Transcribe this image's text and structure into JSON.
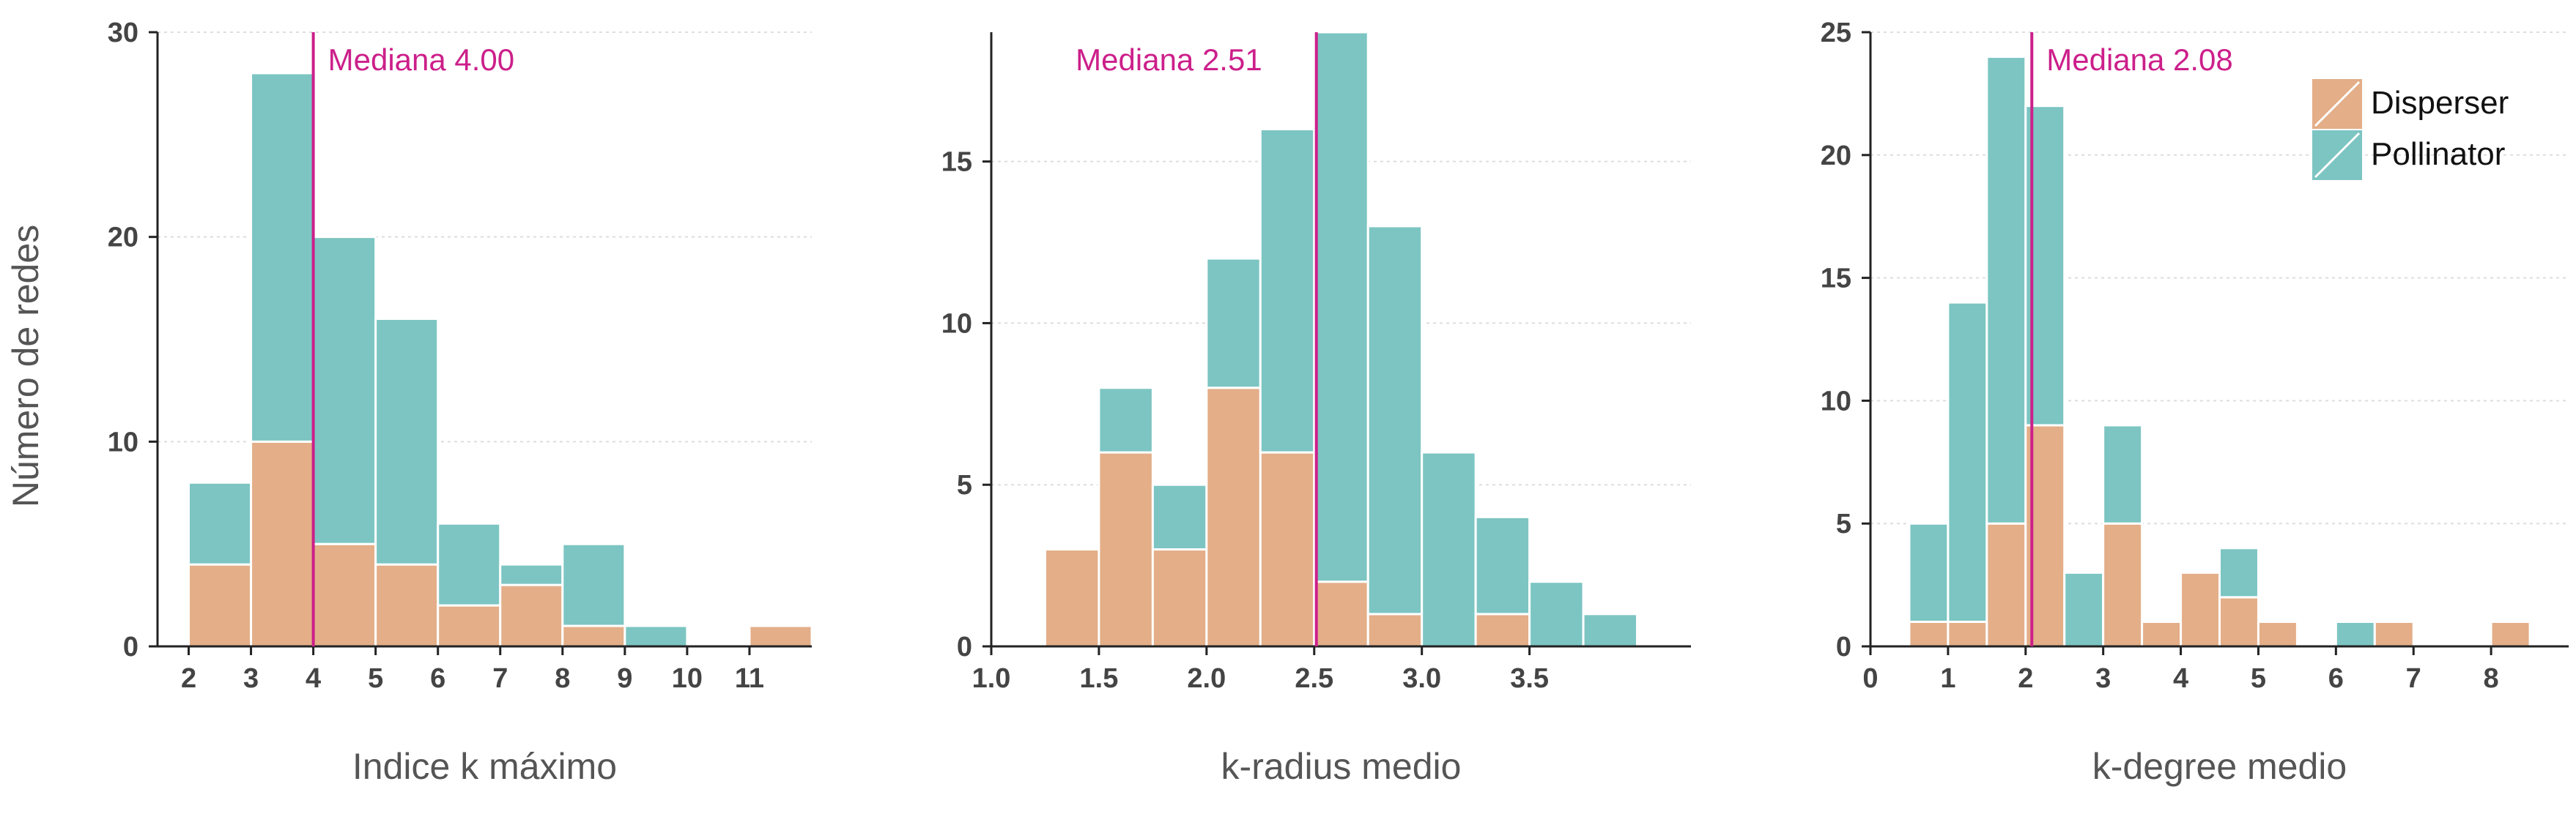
{
  "ylabel": "Número de redes",
  "colors": {
    "disperser": "#e3ae88",
    "pollinator": "#7cc5c2",
    "median": "#cc1f8a",
    "axis": "#222222",
    "grid": "#dddddd"
  },
  "legend": {
    "position": "top-right of third panel",
    "items": [
      {
        "label": "Disperser",
        "color": "#e3ae88"
      },
      {
        "label": "Pollinator",
        "color": "#7cc5c2"
      }
    ]
  },
  "chart_data": [
    {
      "type": "bar",
      "stacked": true,
      "xlabel": "Indice k máximo",
      "ylabel": "Número de redes",
      "median_label": "Mediana 4.00",
      "median": 4.0,
      "xlim": [
        1.5,
        12
      ],
      "ylim": [
        0,
        30
      ],
      "xticks": [
        2,
        3,
        4,
        5,
        6,
        7,
        8,
        9,
        10,
        11
      ],
      "yticks": [
        0,
        10,
        20,
        30
      ],
      "grid": true,
      "bins": [
        {
          "x0": 2,
          "x1": 3,
          "disperser": 4,
          "pollinator": 4
        },
        {
          "x0": 3,
          "x1": 4,
          "disperser": 10,
          "pollinator": 18
        },
        {
          "x0": 4,
          "x1": 5,
          "disperser": 5,
          "pollinator": 15
        },
        {
          "x0": 5,
          "x1": 6,
          "disperser": 4,
          "pollinator": 12
        },
        {
          "x0": 6,
          "x1": 7,
          "disperser": 2,
          "pollinator": 4
        },
        {
          "x0": 7,
          "x1": 8,
          "disperser": 3,
          "pollinator": 1
        },
        {
          "x0": 8,
          "x1": 9,
          "disperser": 1,
          "pollinator": 4
        },
        {
          "x0": 9,
          "x1": 10,
          "disperser": 0,
          "pollinator": 1
        },
        {
          "x0": 11,
          "x1": 12,
          "disperser": 1,
          "pollinator": 0
        }
      ]
    },
    {
      "type": "bar",
      "stacked": true,
      "xlabel": "k-radius medio",
      "ylabel": "",
      "median_label": "Mediana 2.51",
      "median": 2.51,
      "xlim": [
        1.0,
        4.25
      ],
      "ylim": [
        0,
        19
      ],
      "xticks": [
        1.0,
        1.5,
        2.0,
        2.5,
        3.0,
        3.5
      ],
      "xtick_labels": [
        "1.0",
        "1.5",
        "2.0",
        "2.5",
        "3.0",
        "3.5"
      ],
      "yticks": [
        0,
        5,
        10,
        15
      ],
      "grid": true,
      "bins": [
        {
          "x0": 1.25,
          "x1": 1.5,
          "disperser": 3,
          "pollinator": 0
        },
        {
          "x0": 1.5,
          "x1": 1.75,
          "disperser": 6,
          "pollinator": 2
        },
        {
          "x0": 1.75,
          "x1": 2.0,
          "disperser": 3,
          "pollinator": 2
        },
        {
          "x0": 2.0,
          "x1": 2.25,
          "disperser": 8,
          "pollinator": 4
        },
        {
          "x0": 2.25,
          "x1": 2.5,
          "disperser": 6,
          "pollinator": 10
        },
        {
          "x0": 2.5,
          "x1": 2.75,
          "disperser": 2,
          "pollinator": 17
        },
        {
          "x0": 2.75,
          "x1": 3.0,
          "disperser": 1,
          "pollinator": 12
        },
        {
          "x0": 3.0,
          "x1": 3.25,
          "disperser": 0,
          "pollinator": 6
        },
        {
          "x0": 3.25,
          "x1": 3.5,
          "disperser": 1,
          "pollinator": 3
        },
        {
          "x0": 3.5,
          "x1": 3.75,
          "disperser": 0,
          "pollinator": 2
        },
        {
          "x0": 3.75,
          "x1": 4.0,
          "disperser": 0,
          "pollinator": 1
        }
      ]
    },
    {
      "type": "bar",
      "stacked": true,
      "xlabel": "k-degree medio",
      "ylabel": "",
      "median_label": "Mediana 2.08",
      "median": 2.08,
      "xlim": [
        0,
        9
      ],
      "ylim": [
        0,
        25
      ],
      "xticks": [
        0,
        1,
        2,
        3,
        4,
        5,
        6,
        7,
        8
      ],
      "yticks": [
        0,
        5,
        10,
        15,
        20,
        25
      ],
      "grid": true,
      "bins": [
        {
          "x0": 0.5,
          "x1": 1.0,
          "disperser": 1,
          "pollinator": 4
        },
        {
          "x0": 1.0,
          "x1": 1.5,
          "disperser": 1,
          "pollinator": 13
        },
        {
          "x0": 1.5,
          "x1": 2.0,
          "disperser": 5,
          "pollinator": 19
        },
        {
          "x0": 2.0,
          "x1": 2.5,
          "disperser": 9,
          "pollinator": 13
        },
        {
          "x0": 2.5,
          "x1": 3.0,
          "disperser": 0,
          "pollinator": 3
        },
        {
          "x0": 3.0,
          "x1": 3.5,
          "disperser": 5,
          "pollinator": 4
        },
        {
          "x0": 3.5,
          "x1": 4.0,
          "disperser": 1,
          "pollinator": 0
        },
        {
          "x0": 4.0,
          "x1": 4.5,
          "disperser": 3,
          "pollinator": 0
        },
        {
          "x0": 4.5,
          "x1": 5.0,
          "disperser": 2,
          "pollinator": 2
        },
        {
          "x0": 5.0,
          "x1": 5.5,
          "disperser": 1,
          "pollinator": 0
        },
        {
          "x0": 6.0,
          "x1": 6.5,
          "disperser": 0,
          "pollinator": 1
        },
        {
          "x0": 6.5,
          "x1": 7.0,
          "disperser": 1,
          "pollinator": 0
        },
        {
          "x0": 8.0,
          "x1": 8.5,
          "disperser": 1,
          "pollinator": 0
        }
      ]
    }
  ]
}
